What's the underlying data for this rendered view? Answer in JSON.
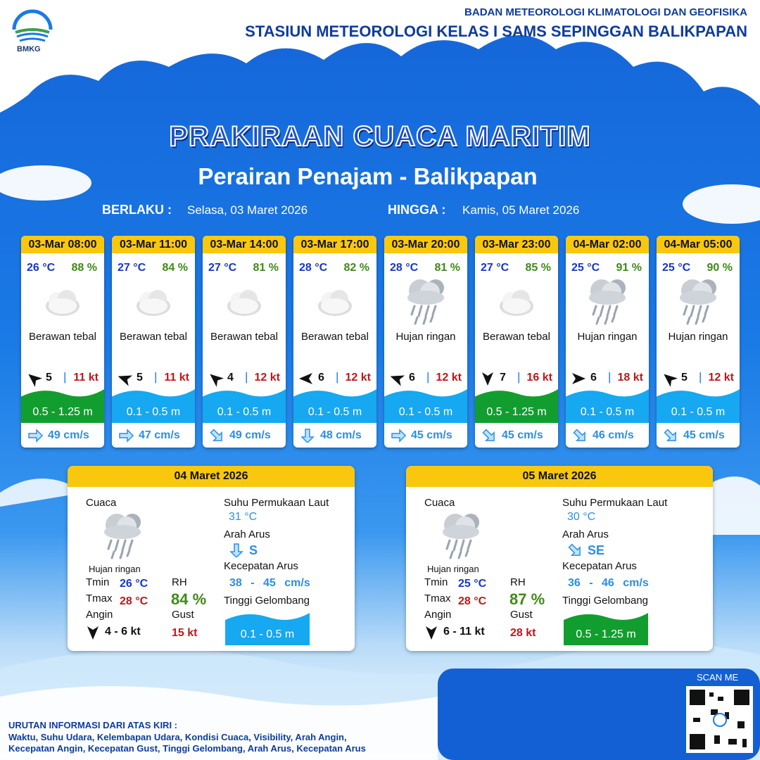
{
  "header": {
    "logo": "BMKG",
    "org": "BADAN METEOROLOGI KLIMATOLOGI DAN GEOFISIKA",
    "station": "STASIUN METEOROLOGI KELAS I SAMS SEPINGGAN BALIKPAPAN"
  },
  "title": "PRAKIRAAN CUACA MARITIM",
  "subtitle": "Perairan Penajam - Balikpapan",
  "validity": {
    "from_label": "BERLAKU :",
    "from": "Selasa, 03 Maret 2026",
    "to_label": "HINGGA :",
    "to": "Kamis, 05 Maret 2026"
  },
  "cards": [
    {
      "time": "03-Mar 08:00",
      "temp": "26 °C",
      "rh": "88 %",
      "condition": "Berawan tebal",
      "wind": "5",
      "gust": "11 kt",
      "wave": "0.5 - 1.25 m",
      "current": "49 cm/s"
    },
    {
      "time": "03-Mar 11:00",
      "temp": "27 °C",
      "rh": "84 %",
      "condition": "Berawan tebal",
      "wind": "5",
      "gust": "11 kt",
      "wave": "0.1 - 0.5 m",
      "current": "47 cm/s"
    },
    {
      "time": "03-Mar 14:00",
      "temp": "27 °C",
      "rh": "81 %",
      "condition": "Berawan tebal",
      "wind": "4",
      "gust": "12 kt",
      "wave": "0.1 - 0.5 m",
      "current": "49 cm/s"
    },
    {
      "time": "03-Mar 17:00",
      "temp": "28 °C",
      "rh": "82 %",
      "condition": "Berawan tebal",
      "wind": "6",
      "gust": "12 kt",
      "wave": "0.1 - 0.5 m",
      "current": "48 cm/s"
    },
    {
      "time": "03-Mar 20:00",
      "temp": "28 °C",
      "rh": "81 %",
      "condition": "Hujan ringan",
      "wind": "6",
      "gust": "12 kt",
      "wave": "0.1 - 0.5 m",
      "current": "45 cm/s"
    },
    {
      "time": "03-Mar 23:00",
      "temp": "27 °C",
      "rh": "85 %",
      "condition": "Berawan tebal",
      "wind": "7",
      "gust": "16 kt",
      "wave": "0.5 - 1.25 m",
      "current": "45 cm/s"
    },
    {
      "time": "04-Mar 02:00",
      "temp": "25 °C",
      "rh": "91 %",
      "condition": "Hujan ringan",
      "wind": "6",
      "gust": "18 kt",
      "wave": "0.1 - 0.5 m",
      "current": "46 cm/s"
    },
    {
      "time": "04-Mar 05:00",
      "temp": "25 °C",
      "rh": "90 %",
      "condition": "Hujan ringan",
      "wind": "5",
      "gust": "12 kt",
      "wave": "0.1 - 0.5 m",
      "current": "45 cm/s"
    }
  ],
  "labels": {
    "weather": "Cuaca",
    "tmin": "Tmin",
    "tmax": "Tmax",
    "wind": "Angin",
    "rh": "RH",
    "gust": "Gust",
    "sst": "Suhu Permukaan Laut",
    "current_dir": "Arah Arus",
    "current_speed": "Kecepatan Arus",
    "wave": "Tinggi Gelombang"
  },
  "daily": [
    {
      "date": "04 Maret 2026",
      "condition": "Hujan ringan",
      "tmin": "26 °C",
      "tmax": "28 °C",
      "wind": "4 - 6 kt",
      "rh": "84 %",
      "gust": "15 kt",
      "sst": "31 °C",
      "current_dir": "S",
      "current_speed": "38 - 45 cm/s",
      "wave": "0.1 - 0.5 m"
    },
    {
      "date": "05 Maret 2026",
      "condition": "Hujan ringan",
      "tmin": "25 °C",
      "tmax": "28 °C",
      "wind": "6 - 11 kt",
      "rh": "87 %",
      "gust": "28 kt",
      "sst": "30 °C",
      "current_dir": "SE",
      "current_speed": "36 - 46 cm/s",
      "wave": "0.5 - 1.25 m"
    }
  ],
  "footer": {
    "scan": "SCAN ME",
    "heading": "URUTAN INFORMASI DARI ATAS KIRI :",
    "lines": [
      "Waktu, Suhu Udara, Kelembapan Udara, Kondisi Cuaca, Visibility, Arah Angin,",
      "Kecepatan Angin, Kecepatan Gust, Tinggi Gelombang, Arah Arus, Kecepatan Arus"
    ]
  }
}
